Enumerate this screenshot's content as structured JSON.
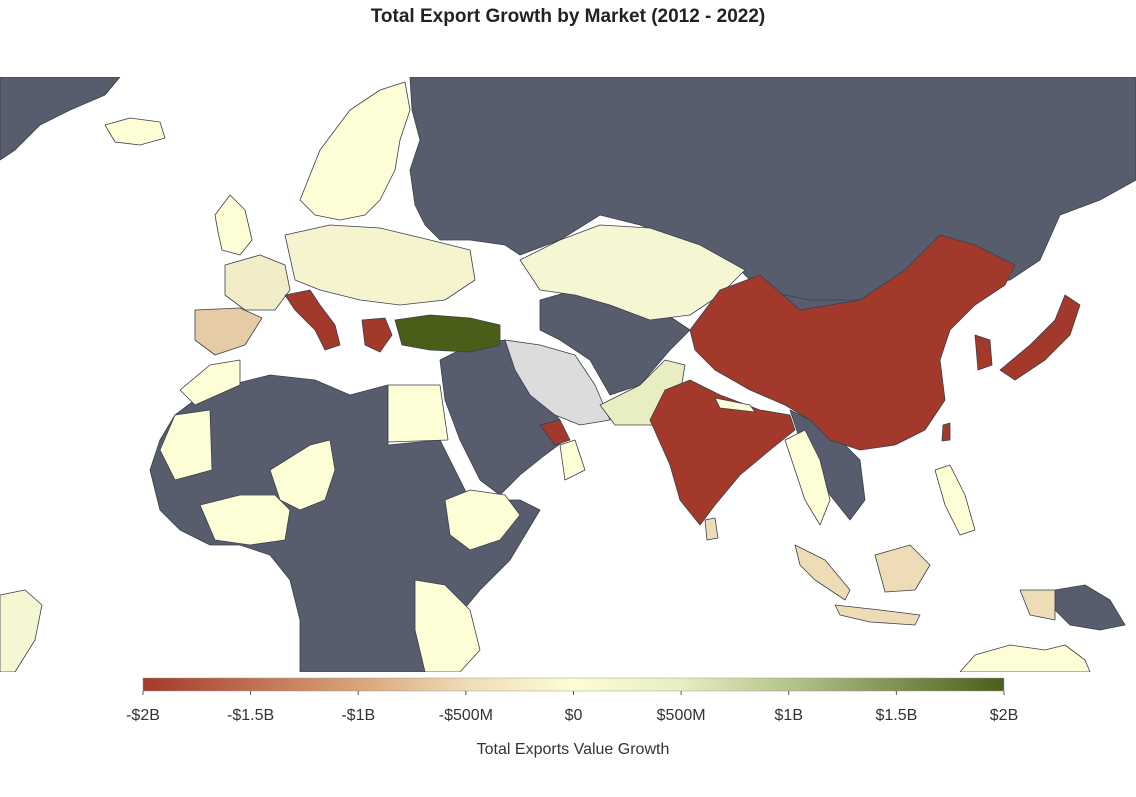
{
  "title": "Total Export Growth by Market (2012 - 2022)",
  "colors": {
    "ocean": "#ffffff",
    "no_data": "#575d6c",
    "border": "#3b3f4a",
    "iran": "#dcdcdc"
  },
  "colorscale": {
    "label": "Total Exports Value Growth",
    "min": -2000000000,
    "max": 2000000000,
    "stops": [
      {
        "value": -2000000000,
        "color": "#a3392a"
      },
      {
        "value": -1000000000,
        "color": "#d9a479"
      },
      {
        "value": -500000000,
        "color": "#eedcb7"
      },
      {
        "value": 0,
        "color": "#fdfdd6"
      },
      {
        "value": 500000000,
        "color": "#e8edc2"
      },
      {
        "value": 1000000000,
        "color": "#b5c48c"
      },
      {
        "value": 2000000000,
        "color": "#4a5e1a"
      }
    ],
    "ticks": [
      {
        "value": -2000000000,
        "label": "-$2B"
      },
      {
        "value": -1500000000,
        "label": "-$1.5B"
      },
      {
        "value": -1000000000,
        "label": "-$1B"
      },
      {
        "value": -500000000,
        "label": "-$500M"
      },
      {
        "value": 0,
        "label": "$0"
      },
      {
        "value": 500000000,
        "label": "$500M"
      },
      {
        "value": 1000000000,
        "label": "$1B"
      },
      {
        "value": 1500000000,
        "label": "$1.5B"
      },
      {
        "value": 2000000000,
        "label": "$2B"
      }
    ]
  }
}
